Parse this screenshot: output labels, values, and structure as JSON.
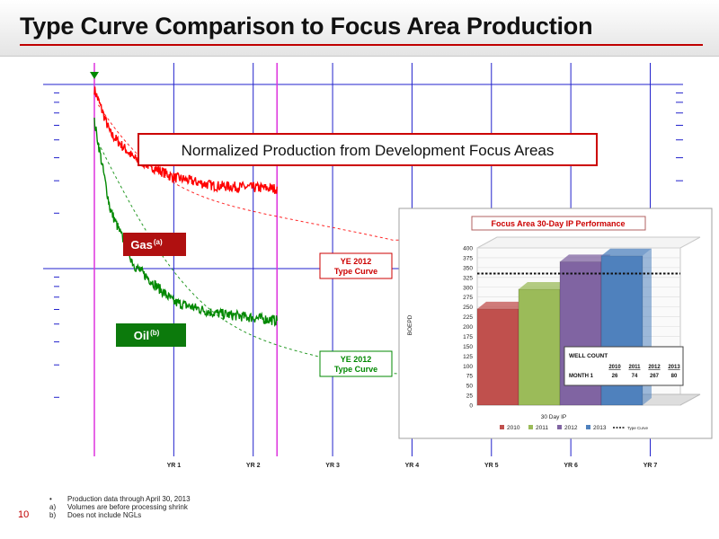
{
  "header": {
    "title": "Type Curve Comparison to Focus Area Production"
  },
  "page_number": "10",
  "footnotes": [
    {
      "key": "•",
      "text": "Production data through April 30, 2013"
    },
    {
      "key": "a)",
      "text": "Volumes are before processing shrink"
    },
    {
      "key": "b)",
      "text": "Does not include NGLs"
    }
  ],
  "colors": {
    "gas": "#ff0000",
    "oil": "#008800",
    "grid": "#2222cc",
    "magenta": "#dd33dd",
    "gas_label_bg": "#b01010",
    "oil_label_bg": "#0c7a0c",
    "bar_2010": "#c0504d",
    "bar_2011": "#9bbb59",
    "bar_2012": "#8064a2",
    "bar_2013": "#4f81bd"
  },
  "chart_data": [
    {
      "type": "scatter",
      "title": "Normalized Production from Development Focus Areas",
      "x_tick_labels": [
        "YR 1",
        "YR 2",
        "YR 3",
        "YR 4",
        "YR 5",
        "YR 6",
        "YR 7"
      ],
      "xlim": [
        0,
        7.3
      ],
      "y_scale": "log",
      "series": [
        {
          "name": "Gas",
          "superscript": "(a)",
          "curve_label": [
            "YE 2012",
            "Type Curve"
          ],
          "x": [
            0,
            0.2,
            0.5,
            1,
            1.5,
            2.3
          ],
          "y": [
            90,
            52,
            38,
            30,
            27,
            26
          ]
        },
        {
          "name": "Oil",
          "superscript": "(b)",
          "curve_label": [
            "YE 2012",
            "Type Curve"
          ],
          "x": [
            0,
            0.2,
            0.5,
            1,
            1.5,
            2.3
          ],
          "y": [
            60,
            20,
            10,
            6.3,
            5.5,
            5
          ]
        }
      ]
    },
    {
      "type": "bar",
      "title": "Focus Area 30-Day IP Performance",
      "ylabel": "BOEPD",
      "xlabel": "30 Day IP",
      "ylim": [
        0,
        400
      ],
      "yticks": [
        "0",
        "25",
        "50",
        "75",
        "100",
        "125",
        "150",
        "175",
        "200",
        "225",
        "250",
        "275",
        "300",
        "325",
        "350",
        "375",
        "400"
      ],
      "categories": [
        "2010",
        "2011",
        "2012",
        "2013"
      ],
      "values": [
        245,
        295,
        365,
        380
      ],
      "type_curve": 335,
      "legend": [
        "2010",
        "2011",
        "2012",
        "2013",
        "Type Curve"
      ],
      "well_count": {
        "title": "WELL COUNT",
        "row_label": "MONTH 1",
        "headers": [
          "2010",
          "2011",
          "2012",
          "2013"
        ],
        "values": [
          "26",
          "74",
          "267",
          "80"
        ]
      }
    }
  ]
}
